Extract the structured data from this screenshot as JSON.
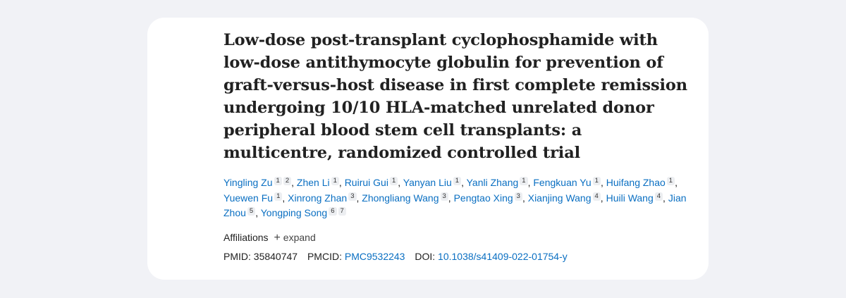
{
  "article": {
    "title": "Low-dose post-transplant cyclophosphamide with low-dose antithymocyte globulin for prevention of graft-versus-host disease in first complete remission undergoing 10/10 HLA-matched unrelated donor peripheral blood stem cell transplants: a multicentre, randomized controlled trial",
    "authors": [
      {
        "name": "Yingling Zu",
        "affs": [
          "1",
          "2"
        ]
      },
      {
        "name": "Zhen Li",
        "affs": [
          "1"
        ]
      },
      {
        "name": "Ruirui Gui",
        "affs": [
          "1"
        ]
      },
      {
        "name": "Yanyan Liu",
        "affs": [
          "1"
        ]
      },
      {
        "name": "Yanli Zhang",
        "affs": [
          "1"
        ]
      },
      {
        "name": "Fengkuan Yu",
        "affs": [
          "1"
        ]
      },
      {
        "name": "Huifang Zhao",
        "affs": [
          "1"
        ]
      },
      {
        "name": "Yuewen Fu",
        "affs": [
          "1"
        ]
      },
      {
        "name": "Xinrong Zhan",
        "affs": [
          "3"
        ]
      },
      {
        "name": "Zhongliang Wang",
        "affs": [
          "3"
        ]
      },
      {
        "name": "Pengtao Xing",
        "affs": [
          "3"
        ]
      },
      {
        "name": "Xianjing Wang",
        "affs": [
          "4"
        ]
      },
      {
        "name": "Huili Wang",
        "affs": [
          "4"
        ]
      },
      {
        "name": "Jian Zhou",
        "affs": [
          "5"
        ]
      },
      {
        "name": "Yongping Song",
        "affs": [
          "6",
          "7"
        ]
      }
    ],
    "affiliations_label": "Affiliations",
    "expand_label": "expand",
    "expand_icon": "plus-icon",
    "pmid_label": "PMID:",
    "pmid": "35840747",
    "pmcid_label": "PMCID:",
    "pmcid": "PMC9532243",
    "doi_label": "DOI:",
    "doi": "10.1038/s41409-022-01754-y",
    "colors": {
      "link": "#0a6fc2",
      "text": "#212121",
      "background": "#f1f2f6",
      "card": "#ffffff"
    }
  }
}
